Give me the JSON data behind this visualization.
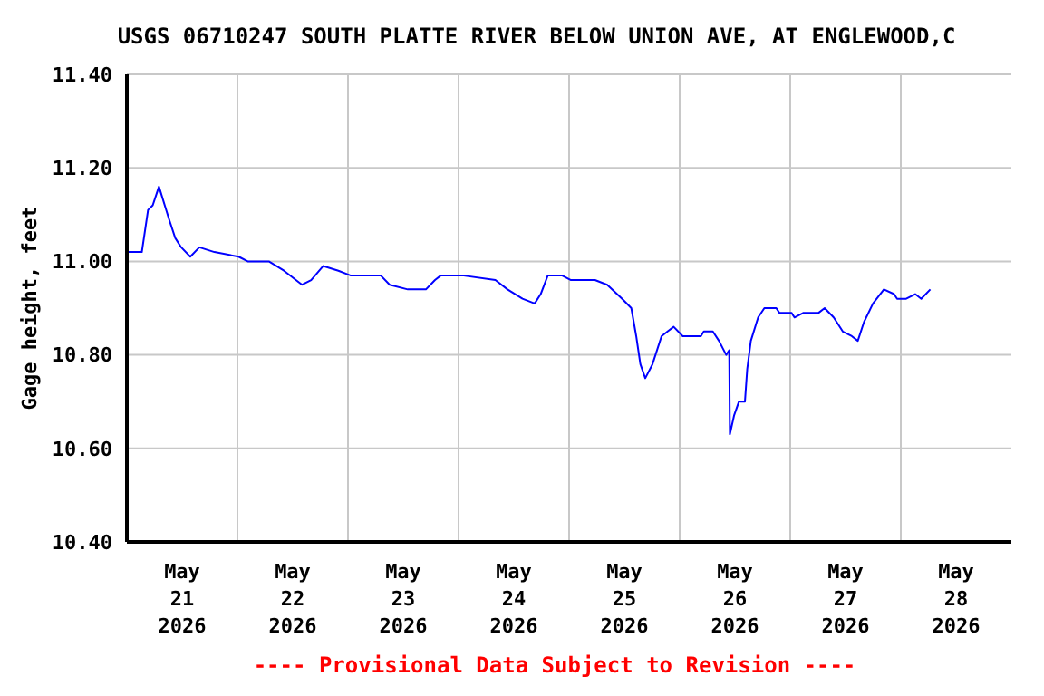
{
  "chart_data": {
    "type": "line",
    "title": "USGS 06710247 SOUTH PLATTE RIVER BELOW UNION AVE, AT ENGLEWOOD,C",
    "ylabel": "Gage height, feet",
    "annotations": [
      "---- Provisional Data Subject to Revision ----"
    ],
    "x": [
      "2026-05-21T00:24",
      "2026-05-21T03:15",
      "2026-05-21T04:36",
      "2026-05-21T05:37",
      "2026-05-21T06:58",
      "2026-05-21T09:10",
      "2026-05-21T10:30",
      "2026-05-21T11:48",
      "2026-05-21T13:46",
      "2026-05-21T15:44",
      "2026-05-21T19:00",
      "2026-05-22T00:16",
      "2026-05-22T02:14",
      "2026-05-22T06:49",
      "2026-05-22T10:06",
      "2026-05-22T14:02",
      "2026-05-22T16:00",
      "2026-05-22T18:36",
      "2026-05-22T21:55",
      "2026-05-23T00:31",
      "2026-05-23T07:05",
      "2026-05-23T09:03",
      "2026-05-23T12:59",
      "2026-05-23T16:55",
      "2026-05-23T18:53",
      "2026-05-23T20:11",
      "2026-05-24T00:47",
      "2026-05-24T08:00",
      "2026-05-24T10:38",
      "2026-05-24T13:53",
      "2026-05-24T16:32",
      "2026-05-24T17:50",
      "2026-05-24T19:23",
      "2026-05-24T22:25",
      "2026-05-25T00:24",
      "2026-05-25T05:37",
      "2026-05-25T08:16",
      "2026-05-25T11:31",
      "2026-05-25T13:30",
      "2026-05-25T14:34",
      "2026-05-25T15:28",
      "2026-05-25T16:32",
      "2026-05-25T18:06",
      "2026-05-25T20:04",
      "2026-05-25T21:22",
      "2026-05-25T22:42",
      "2026-05-26T00:40",
      "2026-05-26T04:36",
      "2026-05-26T05:14",
      "2026-05-26T07:12",
      "2026-05-26T08:32",
      "2026-05-26T10:06",
      "2026-05-26T10:45",
      "2026-05-26T10:54",
      "2026-05-26T11:48",
      "2026-05-26T12:52",
      "2026-05-26T14:10",
      "2026-05-26T14:40",
      "2026-05-26T15:27",
      "2026-05-26T17:02",
      "2026-05-26T18:23",
      "2026-05-26T20:58",
      "2026-05-26T21:38",
      "2026-05-27T00:16",
      "2026-05-27T00:55",
      "2026-05-27T02:53",
      "2026-05-27T06:10",
      "2026-05-27T07:28",
      "2026-05-27T09:26",
      "2026-05-27T11:24",
      "2026-05-27T13:22",
      "2026-05-27T14:40",
      "2026-05-27T16:00",
      "2026-05-27T17:58",
      "2026-05-27T20:20",
      "2026-05-27T22:32",
      "2026-05-27T23:12",
      "2026-05-28T01:10",
      "2026-05-28T03:08",
      "2026-05-28T04:26",
      "2026-05-28T06:24"
    ],
    "series": [
      {
        "color": "#0000ff",
        "values": [
          11.02,
          11.02,
          11.11,
          11.12,
          11.16,
          11.09,
          11.05,
          11.03,
          11.01,
          11.03,
          11.02,
          11.01,
          11.0,
          11.0,
          10.98,
          10.95,
          10.96,
          10.99,
          10.98,
          10.97,
          10.97,
          10.95,
          10.94,
          10.94,
          10.96,
          10.97,
          10.97,
          10.96,
          10.94,
          10.92,
          10.91,
          10.93,
          10.97,
          10.97,
          10.96,
          10.96,
          10.95,
          10.92,
          10.9,
          10.84,
          10.78,
          10.75,
          10.78,
          10.84,
          10.85,
          10.86,
          10.84,
          10.84,
          10.85,
          10.85,
          10.83,
          10.8,
          10.81,
          10.63,
          10.67,
          10.7,
          10.7,
          10.77,
          10.83,
          10.88,
          10.9,
          10.9,
          10.89,
          10.89,
          10.88,
          10.89,
          10.89,
          10.9,
          10.88,
          10.85,
          10.84,
          10.83,
          10.87,
          10.91,
          10.94,
          10.93,
          10.92,
          10.92,
          10.93,
          10.92,
          10.94
        ]
      }
    ],
    "xlim": [
      "2026-05-21T00:00",
      "2026-05-29T00:00"
    ],
    "xticks": [
      {
        "value": "2026-05-21T12:00",
        "label": "May 21 2026"
      },
      {
        "value": "2026-05-22T00:00",
        "label": null
      },
      {
        "value": "2026-05-22T12:00",
        "label": "May 22 2026"
      },
      {
        "value": "2026-05-23T00:00",
        "label": null
      },
      {
        "value": "2026-05-23T12:00",
        "label": "May 23 2026"
      },
      {
        "value": "2026-05-24T00:00",
        "label": null
      },
      {
        "value": "2026-05-24T12:00",
        "label": "May 24 2026"
      },
      {
        "value": "2026-05-25T00:00",
        "label": null
      },
      {
        "value": "2026-05-25T12:00",
        "label": "May 25 2026"
      },
      {
        "value": "2026-05-26T00:00",
        "label": null
      },
      {
        "value": "2026-05-26T12:00",
        "label": "May 26 2026"
      },
      {
        "value": "2026-05-27T00:00",
        "label": null
      },
      {
        "value": "2026-05-27T12:00",
        "label": "May 27 2026"
      },
      {
        "value": "2026-05-28T00:00",
        "label": null
      },
      {
        "value": "2026-05-28T12:00",
        "label": "May 28 2026"
      }
    ],
    "ylim": [
      10.4,
      11.4
    ],
    "yticks": [
      {
        "value": 10.4,
        "label": "10.40"
      },
      {
        "value": 10.6,
        "label": "10.60"
      },
      {
        "value": 10.8,
        "label": "10.80"
      },
      {
        "value": 11.0,
        "label": "11.00"
      },
      {
        "value": 11.2,
        "label": "11.20"
      },
      {
        "value": 11.4,
        "label": "11.40"
      }
    ],
    "grid": true,
    "marker": "none",
    "line_style": "solid"
  }
}
